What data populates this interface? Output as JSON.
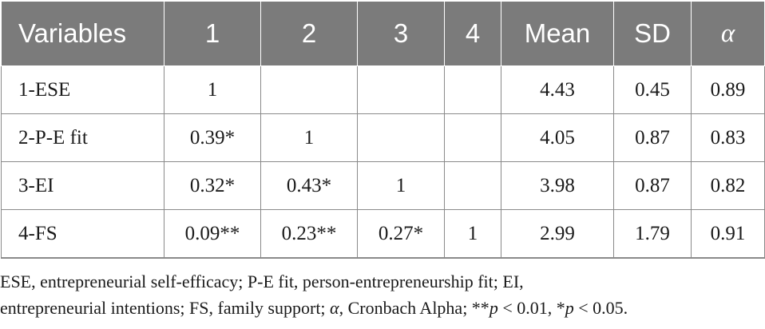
{
  "table": {
    "headers": [
      "Variables",
      "1",
      "2",
      "3",
      "4",
      "Mean",
      "SD",
      "α"
    ],
    "rows": [
      [
        "1-ESE",
        "1",
        "",
        "",
        "",
        "4.43",
        "0.45",
        "0.89"
      ],
      [
        "2-P-E fit",
        "0.39*",
        "1",
        "",
        "",
        "4.05",
        "0.87",
        "0.83"
      ],
      [
        "3-EI",
        "0.32*",
        "0.43*",
        "1",
        "",
        "3.98",
        "0.87",
        "0.82"
      ],
      [
        "4-FS",
        "0.09**",
        "0.23**",
        "0.27*",
        "1",
        "2.99",
        "1.79",
        "0.91"
      ]
    ]
  },
  "note": {
    "line1": "ESE, entrepreneurial self-efficacy; P-E fit, person-entrepreneurship fit; EI,",
    "line2_prefix": "entrepreneurial intentions; FS, family support; ",
    "alpha": "α",
    "line2_mid": ", Cronbach Alpha; **",
    "p1": "p",
    "p1_cond": " < 0.01, *",
    "p2": "p",
    "p2_cond": " < 0.05."
  }
}
